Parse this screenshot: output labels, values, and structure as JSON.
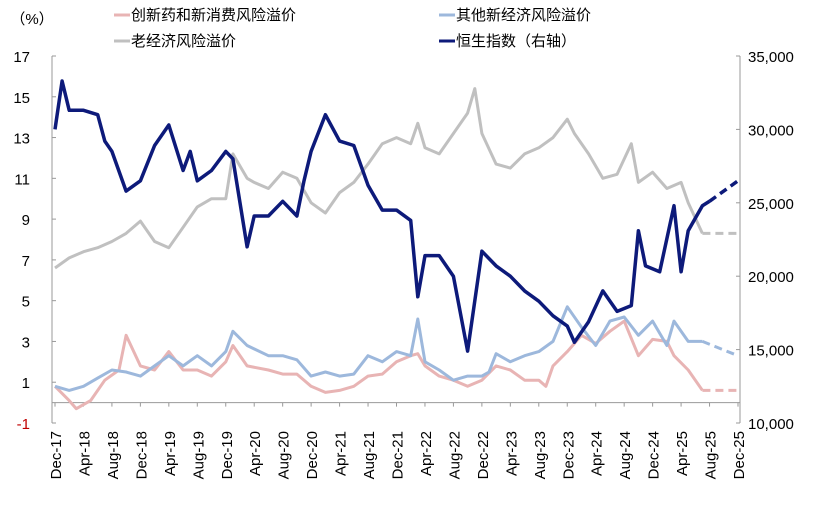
{
  "chart_data": {
    "type": "line",
    "title": "",
    "ylabel_left": "（%）",
    "ylim_left": [
      -1,
      17
    ],
    "yticks_left": [
      "17",
      "15",
      "13",
      "11",
      "9",
      "7",
      "5",
      "3",
      "1",
      "-1"
    ],
    "ylim_right": [
      10000,
      35000
    ],
    "yticks_right": [
      "35,000",
      "30,000",
      "25,000",
      "20,000",
      "15,000",
      "10,000"
    ],
    "x_unit": "months since Dec-17",
    "xlim": [
      0,
      96
    ],
    "xticks": [
      "Dec-17",
      "Apr-18",
      "Aug-18",
      "Dec-18",
      "Apr-19",
      "Aug-19",
      "Dec-19",
      "Apr-20",
      "Aug-20",
      "Dec-20",
      "Apr-21",
      "Aug-21",
      "Dec-21",
      "Apr-22",
      "Aug-22",
      "Dec-22",
      "Apr-23",
      "Aug-23",
      "Dec-23",
      "Apr-24",
      "Aug-24",
      "Dec-24",
      "Apr-25",
      "Aug-25",
      "Dec-25"
    ],
    "legend": "top",
    "series": [
      {
        "name": "创新药和新消费风险溢价",
        "axis": "left",
        "color": "#e8b4b4",
        "values": [
          [
            0,
            0.8
          ],
          [
            2,
            0.1
          ],
          [
            3,
            -0.3
          ],
          [
            5,
            0.1
          ],
          [
            7,
            1.1
          ],
          [
            9,
            1.6
          ],
          [
            10,
            3.3
          ],
          [
            12,
            1.8
          ],
          [
            14,
            1.6
          ],
          [
            16,
            2.5
          ],
          [
            18,
            1.6
          ],
          [
            20,
            1.6
          ],
          [
            22,
            1.3
          ],
          [
            24,
            2.0
          ],
          [
            25,
            2.8
          ],
          [
            27,
            1.8
          ],
          [
            30,
            1.6
          ],
          [
            32,
            1.4
          ],
          [
            34,
            1.4
          ],
          [
            36,
            0.8
          ],
          [
            38,
            0.5
          ],
          [
            40,
            0.6
          ],
          [
            42,
            0.8
          ],
          [
            44,
            1.3
          ],
          [
            46,
            1.4
          ],
          [
            48,
            2.0
          ],
          [
            50,
            2.3
          ],
          [
            51,
            2.4
          ],
          [
            52,
            1.8
          ],
          [
            54,
            1.3
          ],
          [
            56,
            1.1
          ],
          [
            58,
            0.8
          ],
          [
            60,
            1.1
          ],
          [
            62,
            1.8
          ],
          [
            64,
            1.6
          ],
          [
            66,
            1.1
          ],
          [
            68,
            1.1
          ],
          [
            69,
            0.8
          ],
          [
            70,
            1.8
          ],
          [
            72,
            2.5
          ],
          [
            74,
            3.3
          ],
          [
            76,
            2.9
          ],
          [
            78,
            3.5
          ],
          [
            80,
            4.0
          ],
          [
            82,
            2.3
          ],
          [
            84,
            3.1
          ],
          [
            86,
            3.0
          ],
          [
            87,
            2.3
          ],
          [
            89,
            1.6
          ],
          [
            91,
            0.6
          ]
        ],
        "projection": [
          [
            91,
            0.6
          ],
          [
            96,
            0.6
          ]
        ]
      },
      {
        "name": "其他新经济风险溢价",
        "axis": "left",
        "color": "#9db8dc",
        "values": [
          [
            0,
            0.8
          ],
          [
            2,
            0.6
          ],
          [
            4,
            0.8
          ],
          [
            6,
            1.2
          ],
          [
            8,
            1.6
          ],
          [
            10,
            1.5
          ],
          [
            12,
            1.3
          ],
          [
            14,
            1.8
          ],
          [
            16,
            2.3
          ],
          [
            18,
            1.8
          ],
          [
            20,
            2.3
          ],
          [
            22,
            1.8
          ],
          [
            24,
            2.5
          ],
          [
            25,
            3.5
          ],
          [
            27,
            2.8
          ],
          [
            30,
            2.3
          ],
          [
            32,
            2.3
          ],
          [
            34,
            2.1
          ],
          [
            36,
            1.3
          ],
          [
            38,
            1.5
          ],
          [
            40,
            1.3
          ],
          [
            42,
            1.4
          ],
          [
            44,
            2.3
          ],
          [
            46,
            2.0
          ],
          [
            48,
            2.5
          ],
          [
            50,
            2.3
          ],
          [
            51,
            4.1
          ],
          [
            52,
            2.0
          ],
          [
            54,
            1.6
          ],
          [
            56,
            1.1
          ],
          [
            58,
            1.3
          ],
          [
            60,
            1.3
          ],
          [
            61,
            1.5
          ],
          [
            62,
            2.4
          ],
          [
            64,
            2.0
          ],
          [
            66,
            2.3
          ],
          [
            68,
            2.5
          ],
          [
            70,
            3.0
          ],
          [
            72,
            4.7
          ],
          [
            74,
            3.7
          ],
          [
            76,
            2.8
          ],
          [
            78,
            4.0
          ],
          [
            80,
            4.2
          ],
          [
            82,
            3.3
          ],
          [
            84,
            4.0
          ],
          [
            86,
            2.8
          ],
          [
            87,
            4.0
          ],
          [
            89,
            3.0
          ],
          [
            91,
            3.0
          ]
        ],
        "projection": [
          [
            91,
            3.0
          ],
          [
            96,
            2.3
          ]
        ]
      },
      {
        "name": "老经济风险溢价",
        "axis": "left",
        "color": "#c0c0c0",
        "values": [
          [
            0,
            6.6
          ],
          [
            2,
            7.1
          ],
          [
            4,
            7.4
          ],
          [
            6,
            7.6
          ],
          [
            8,
            7.9
          ],
          [
            10,
            8.3
          ],
          [
            12,
            8.9
          ],
          [
            14,
            7.9
          ],
          [
            16,
            7.6
          ],
          [
            18,
            8.6
          ],
          [
            20,
            9.6
          ],
          [
            22,
            10.0
          ],
          [
            24,
            10.0
          ],
          [
            25,
            12.2
          ],
          [
            27,
            11.0
          ],
          [
            28,
            10.8
          ],
          [
            30,
            10.5
          ],
          [
            32,
            11.3
          ],
          [
            34,
            11.0
          ],
          [
            36,
            9.8
          ],
          [
            38,
            9.3
          ],
          [
            40,
            10.3
          ],
          [
            42,
            10.8
          ],
          [
            44,
            11.7
          ],
          [
            46,
            12.7
          ],
          [
            48,
            13.0
          ],
          [
            50,
            12.7
          ],
          [
            51,
            13.7
          ],
          [
            52,
            12.5
          ],
          [
            54,
            12.2
          ],
          [
            56,
            13.2
          ],
          [
            58,
            14.2
          ],
          [
            59,
            15.4
          ],
          [
            60,
            13.2
          ],
          [
            62,
            11.7
          ],
          [
            64,
            11.5
          ],
          [
            66,
            12.2
          ],
          [
            68,
            12.5
          ],
          [
            70,
            13.0
          ],
          [
            72,
            13.9
          ],
          [
            73,
            13.2
          ],
          [
            75,
            12.2
          ],
          [
            77,
            11.0
          ],
          [
            79,
            11.2
          ],
          [
            81,
            12.7
          ],
          [
            82,
            10.8
          ],
          [
            84,
            11.3
          ],
          [
            86,
            10.5
          ],
          [
            88,
            10.8
          ],
          [
            89,
            9.8
          ],
          [
            91,
            8.3
          ]
        ],
        "projection": [
          [
            91,
            8.3
          ],
          [
            96,
            8.3
          ]
        ]
      },
      {
        "name": "恒生指数（右轴）",
        "axis": "right",
        "color": "#0d1a7a",
        "values": [
          [
            0,
            30000
          ],
          [
            1,
            33300
          ],
          [
            2,
            31300
          ],
          [
            4,
            31300
          ],
          [
            6,
            31000
          ],
          [
            7,
            29200
          ],
          [
            8,
            28500
          ],
          [
            10,
            25800
          ],
          [
            12,
            26500
          ],
          [
            14,
            28900
          ],
          [
            16,
            30300
          ],
          [
            18,
            27200
          ],
          [
            19,
            28500
          ],
          [
            20,
            26500
          ],
          [
            22,
            27200
          ],
          [
            24,
            28500
          ],
          [
            25,
            28000
          ],
          [
            26,
            25000
          ],
          [
            27,
            22000
          ],
          [
            28,
            24100
          ],
          [
            30,
            24100
          ],
          [
            32,
            25100
          ],
          [
            34,
            24100
          ],
          [
            35,
            26500
          ],
          [
            36,
            28500
          ],
          [
            38,
            31000
          ],
          [
            40,
            29200
          ],
          [
            42,
            28900
          ],
          [
            44,
            26200
          ],
          [
            46,
            24500
          ],
          [
            48,
            24500
          ],
          [
            50,
            23800
          ],
          [
            51,
            18600
          ],
          [
            52,
            21400
          ],
          [
            54,
            21400
          ],
          [
            56,
            20000
          ],
          [
            58,
            14900
          ],
          [
            60,
            21700
          ],
          [
            62,
            20700
          ],
          [
            64,
            20000
          ],
          [
            66,
            19000
          ],
          [
            68,
            18300
          ],
          [
            70,
            17300
          ],
          [
            72,
            16600
          ],
          [
            73,
            15500
          ],
          [
            75,
            16900
          ],
          [
            77,
            19000
          ],
          [
            79,
            17600
          ],
          [
            81,
            18000
          ],
          [
            82,
            23100
          ],
          [
            83,
            20700
          ],
          [
            85,
            20300
          ],
          [
            87,
            24800
          ],
          [
            88,
            20300
          ],
          [
            89,
            23100
          ],
          [
            91,
            24800
          ],
          [
            92,
            25100
          ]
        ],
        "projection": [
          [
            92,
            25100
          ],
          [
            96,
            26500
          ]
        ]
      }
    ]
  }
}
